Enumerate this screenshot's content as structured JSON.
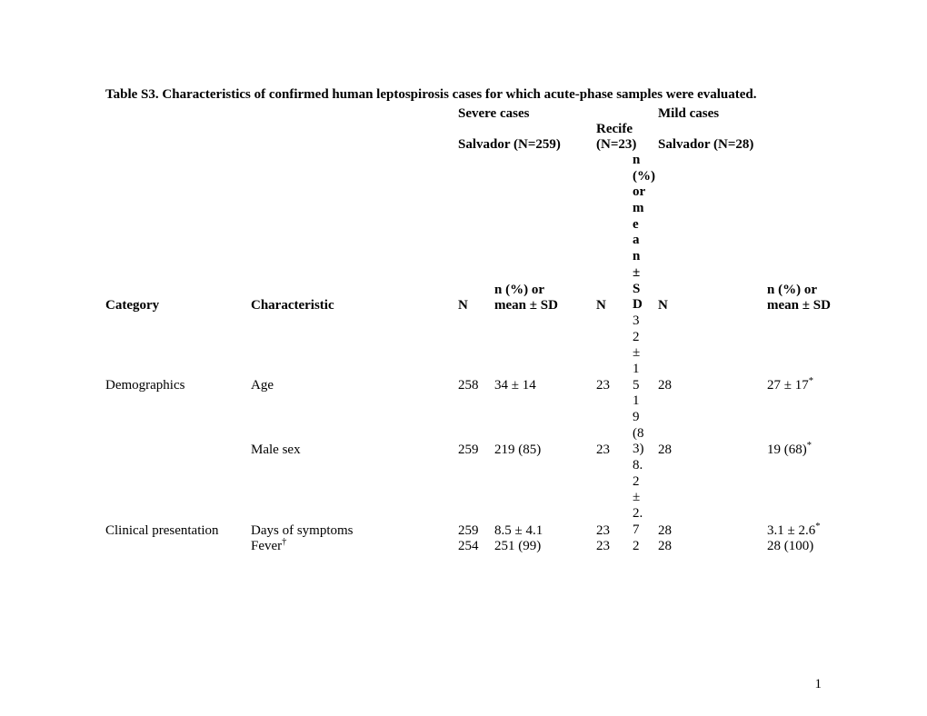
{
  "title": "Table S3. Characteristics of confirmed human leptospirosis cases for which acute-phase samples were evaluated.",
  "group_headers": {
    "severe": "Severe cases",
    "mild": "Mild cases",
    "salvador_severe": "Salvador  (N=259)",
    "recife": "Recife (N=23)",
    "salvador_mild": "Salvador (N=28)"
  },
  "col_headers": {
    "category": "Category",
    "characteristic": "Characteristic",
    "n": "N",
    "npct": "n (%) or",
    "meansd": "mean ± SD",
    "npct_recife": "n (%) or mean ± SD"
  },
  "rows": {
    "demo": {
      "category": "Demographics",
      "char": "Age",
      "n1": "258",
      "v1": "34 ± 14",
      "n2": "23",
      "v2": "32 ± 15",
      "n3": "28",
      "v3": "27 ± 17",
      "v3_sup": "*"
    },
    "male": {
      "category": "",
      "char": "Male sex",
      "n1": "259",
      "v1": "219 (85)",
      "n2": "23",
      "v2": "19 (83)",
      "n3": "28",
      "v3": "19 (68)",
      "v3_sup": "*"
    },
    "days": {
      "category": "Clinical presentation",
      "char": "Days of symptoms",
      "n1": "259",
      "v1": "8.5 ± 4.1",
      "n2": "23",
      "v2": "8.2 ± 2.7",
      "n3": "28",
      "v3": "3.1 ± 2.6",
      "v3_sup": "*"
    },
    "fever": {
      "category": "",
      "char": "Fever",
      "char_sup": "†",
      "n1": "254",
      "v1": "251 (99)",
      "n2": "23",
      "v2": "2",
      "n3": "28",
      "v3": "28 (100)",
      "v3_sup": ""
    }
  },
  "page_number": "1",
  "colors": {
    "text": "#000000",
    "bg": "#ffffff"
  },
  "typography": {
    "family": "Times New Roman",
    "size_pt": 12
  }
}
